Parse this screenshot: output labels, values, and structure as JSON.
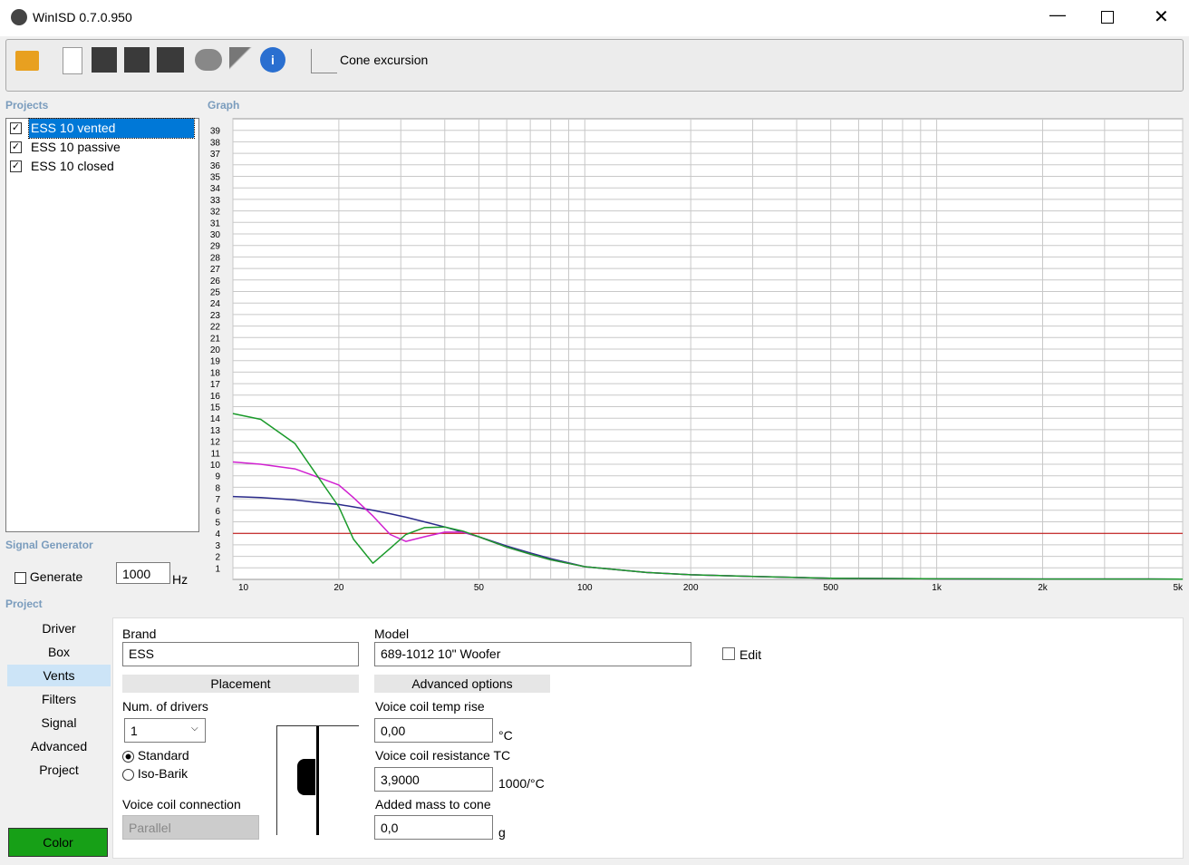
{
  "window": {
    "title": "WinISD 0.7.0.950"
  },
  "toolbar": {
    "cone_button": "Cone excursion"
  },
  "projects": {
    "label": "Projects",
    "items": [
      "ESS 10 vented",
      "ESS 10 passive",
      "ESS 10 closed"
    ]
  },
  "graph": {
    "label": "Graph"
  },
  "signal_generator": {
    "label": "Signal Generator",
    "generate": "Generate",
    "frequency": "1000",
    "unit": "Hz"
  },
  "project": {
    "label": "Project",
    "tabs": [
      "Driver",
      "Box",
      "Vents",
      "Filters",
      "Signal",
      "Advanced",
      "Project"
    ],
    "color_button": "Color",
    "brand_label": "Brand",
    "brand": "ESS",
    "model_label": "Model",
    "model": "689-1012 10\" Woofer",
    "edit": "Edit",
    "placement": "Placement",
    "advanced_options": "Advanced options",
    "num_drivers_label": "Num. of drivers",
    "num_drivers": "1",
    "standard": "Standard",
    "iso_barik": "Iso-Barik",
    "vc_connection_label": "Voice coil connection",
    "vc_connection": "Parallel",
    "temp_rise_label": "Voice coil temp rise",
    "temp_rise": "0,00",
    "temp_rise_unit": "°C",
    "resistance_tc_label": "Voice coil resistance TC",
    "resistance_tc": "3,9000",
    "resistance_tc_unit": "1000/°C",
    "added_mass_label": "Added mass to cone",
    "added_mass": "0,0",
    "added_mass_unit": "g"
  },
  "chart_data": {
    "type": "line",
    "x_scale": "log",
    "x": [
      10,
      12,
      15,
      17,
      20,
      22,
      25,
      28,
      31,
      35,
      40,
      45,
      50,
      60,
      70,
      80,
      100,
      150,
      200,
      300,
      500,
      1000,
      2000,
      5000
    ],
    "series": [
      {
        "color": "#2a2a8a",
        "values": [
          7.2,
          7.1,
          6.9,
          6.7,
          6.5,
          6.3,
          6.0,
          5.7,
          5.4,
          5.0,
          4.55,
          4.1,
          3.7,
          2.9,
          2.3,
          1.8,
          1.1,
          0.6,
          0.4,
          0.25,
          0.1,
          0.05,
          0.03,
          0.02
        ]
      },
      {
        "color": "#d020d0",
        "values": [
          10.2,
          10.0,
          9.6,
          9.0,
          8.2,
          7.1,
          5.5,
          3.9,
          3.3,
          3.7,
          4.1,
          4.1,
          3.7,
          2.8,
          2.2,
          1.7,
          1.1,
          0.6,
          0.4,
          0.25,
          0.1,
          0.05,
          0.03,
          0.02
        ]
      },
      {
        "color": "#1a9a2a",
        "values": [
          14.4,
          13.9,
          11.8,
          9.4,
          6.3,
          3.5,
          1.4,
          2.7,
          3.9,
          4.5,
          4.55,
          4.2,
          3.7,
          2.8,
          2.2,
          1.7,
          1.1,
          0.6,
          0.4,
          0.25,
          0.1,
          0.05,
          0.03,
          0.02
        ]
      }
    ],
    "reference_line": {
      "value": 4,
      "color": "#c00000"
    },
    "xlim": [
      10,
      5000
    ],
    "ylim": [
      0,
      40
    ],
    "xticks": [
      10,
      20,
      50,
      100,
      200,
      500,
      {
        "value": 1000,
        "label": "1k"
      },
      {
        "value": 2000,
        "label": "2k"
      },
      {
        "value": 5000,
        "label": "5k"
      }
    ],
    "x_minor_grid": [
      30,
      40,
      60,
      70,
      80,
      90,
      300,
      400,
      600,
      700,
      800,
      900,
      3000,
      4000
    ],
    "yticks": [
      1,
      2,
      3,
      4,
      5,
      6,
      7,
      8,
      9,
      10,
      11,
      12,
      13,
      14,
      15,
      16,
      17,
      18,
      19,
      20,
      21,
      22,
      23,
      24,
      25,
      26,
      27,
      28,
      29,
      30,
      31,
      32,
      33,
      34,
      35,
      36,
      37,
      38,
      39
    ],
    "grid": true
  }
}
